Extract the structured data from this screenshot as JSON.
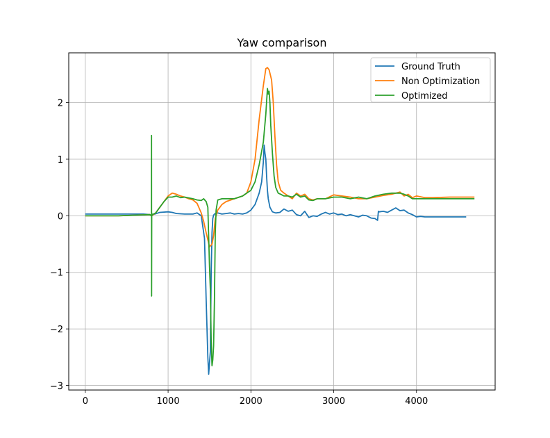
{
  "chart_data": {
    "type": "line",
    "title": "Yaw comparison",
    "xlabel": "",
    "ylabel": "",
    "xlim": [
      -200,
      4950
    ],
    "ylim": [
      -3.08,
      2.88
    ],
    "xticks": [
      0,
      1000,
      2000,
      3000,
      4000
    ],
    "xtick_labels": [
      "0",
      "1000",
      "2000",
      "3000",
      "4000"
    ],
    "yticks": [
      -3,
      -2,
      -1,
      0,
      1,
      2
    ],
    "ytick_labels": [
      "−3",
      "−2",
      "−1",
      "0",
      "1",
      "2"
    ],
    "grid": true,
    "legend_position": "upper right",
    "series": [
      {
        "name": "Ground Truth",
        "color": "#1f77b4",
        "x": [
          0,
          200,
          400,
          600,
          700,
          780,
          800,
          820,
          900,
          1000,
          1050,
          1100,
          1200,
          1300,
          1350,
          1400,
          1440,
          1460,
          1480,
          1490,
          1500,
          1510,
          1520,
          1530,
          1540,
          1550,
          1560,
          1600,
          1650,
          1700,
          1750,
          1800,
          1850,
          1900,
          1950,
          2000,
          2050,
          2100,
          2130,
          2150,
          2160,
          2170,
          2180,
          2190,
          2200,
          2210,
          2230,
          2260,
          2300,
          2350,
          2400,
          2450,
          2500,
          2550,
          2600,
          2650,
          2700,
          2750,
          2800,
          2850,
          2900,
          2950,
          3000,
          3050,
          3100,
          3150,
          3200,
          3250,
          3300,
          3350,
          3400,
          3450,
          3500,
          3530,
          3540,
          3550,
          3600,
          3650,
          3700,
          3750,
          3800,
          3850,
          3900,
          3950,
          4000,
          4050,
          4100,
          4200,
          4300,
          4400,
          4500,
          4600
        ],
        "y": [
          0.03,
          0.03,
          0.03,
          0.03,
          0.03,
          0.02,
          0.0,
          0.02,
          0.06,
          0.07,
          0.06,
          0.04,
          0.03,
          0.03,
          0.05,
          0.0,
          -0.4,
          -1.5,
          -2.5,
          -2.8,
          -2.6,
          -2.4,
          -1.0,
          -0.3,
          -0.05,
          0.01,
          0.03,
          0.05,
          0.03,
          0.04,
          0.05,
          0.03,
          0.04,
          0.03,
          0.05,
          0.1,
          0.2,
          0.4,
          0.6,
          0.95,
          1.25,
          1.1,
          1.0,
          0.7,
          0.45,
          0.3,
          0.15,
          0.07,
          0.05,
          0.06,
          0.12,
          0.08,
          0.1,
          0.02,
          0.0,
          0.08,
          -0.03,
          0.0,
          -0.01,
          0.03,
          0.06,
          0.03,
          0.05,
          0.02,
          0.03,
          0.0,
          0.02,
          0.0,
          -0.02,
          0.01,
          0.0,
          -0.04,
          -0.05,
          -0.08,
          0.08,
          0.07,
          0.08,
          0.06,
          0.1,
          0.14,
          0.09,
          0.1,
          0.05,
          0.02,
          -0.02,
          -0.01,
          -0.02,
          -0.02,
          -0.02,
          -0.02,
          -0.02,
          -0.02
        ]
      },
      {
        "name": "Non Optimization",
        "color": "#ff7f0e",
        "x": [
          0,
          200,
          400,
          600,
          780,
          800,
          850,
          900,
          950,
          1000,
          1050,
          1100,
          1150,
          1200,
          1250,
          1300,
          1350,
          1400,
          1430,
          1460,
          1500,
          1530,
          1550,
          1570,
          1600,
          1650,
          1700,
          1800,
          1900,
          1950,
          2000,
          2050,
          2100,
          2150,
          2180,
          2200,
          2220,
          2250,
          2270,
          2290,
          2310,
          2330,
          2360,
          2400,
          2450,
          2500,
          2550,
          2600,
          2650,
          2700,
          2750,
          2800,
          2900,
          3000,
          3100,
          3200,
          3300,
          3400,
          3500,
          3600,
          3700,
          3800,
          3850,
          3900,
          3950,
          4000,
          4100,
          4200,
          4400,
          4700
        ],
        "y": [
          0.0,
          0.0,
          0.0,
          0.01,
          0.02,
          0.0,
          0.05,
          0.15,
          0.25,
          0.35,
          0.4,
          0.38,
          0.35,
          0.33,
          0.3,
          0.28,
          0.22,
          0.05,
          -0.1,
          -0.3,
          -0.55,
          -0.5,
          -0.35,
          -0.05,
          0.1,
          0.2,
          0.25,
          0.3,
          0.35,
          0.4,
          0.6,
          1.0,
          1.7,
          2.3,
          2.6,
          2.62,
          2.58,
          2.4,
          2.0,
          1.4,
          0.9,
          0.6,
          0.45,
          0.4,
          0.35,
          0.3,
          0.4,
          0.35,
          0.38,
          0.3,
          0.28,
          0.3,
          0.3,
          0.37,
          0.35,
          0.33,
          0.3,
          0.3,
          0.33,
          0.36,
          0.38,
          0.42,
          0.35,
          0.38,
          0.32,
          0.35,
          0.32,
          0.32,
          0.33,
          0.33
        ]
      },
      {
        "name": "Optimized",
        "color": "#2ca02c",
        "x": [
          0,
          200,
          400,
          600,
          780,
          799,
          800,
          801,
          802,
          803,
          810,
          850,
          900,
          950,
          1000,
          1050,
          1100,
          1150,
          1200,
          1300,
          1350,
          1400,
          1430,
          1460,
          1480,
          1500,
          1510,
          1520,
          1530,
          1540,
          1550,
          1560,
          1570,
          1580,
          1600,
          1650,
          1700,
          1800,
          1900,
          1950,
          2000,
          2050,
          2100,
          2150,
          2180,
          2200,
          2210,
          2220,
          2230,
          2240,
          2260,
          2280,
          2300,
          2330,
          2360,
          2400,
          2450,
          2500,
          2550,
          2600,
          2650,
          2700,
          2750,
          2800,
          2900,
          3000,
          3100,
          3200,
          3300,
          3400,
          3500,
          3600,
          3700,
          3800,
          3850,
          3900,
          3950,
          4000,
          4100,
          4200,
          4400,
          4700
        ],
        "y": [
          0.0,
          0.0,
          0.0,
          0.01,
          0.02,
          0.0,
          1.42,
          -1.42,
          0.05,
          0.0,
          0.02,
          0.05,
          0.15,
          0.25,
          0.33,
          0.33,
          0.35,
          0.32,
          0.33,
          0.3,
          0.28,
          0.27,
          0.3,
          0.25,
          0.15,
          -0.9,
          -1.3,
          -2.2,
          -2.65,
          -2.55,
          -2.3,
          -1.5,
          -0.3,
          0.1,
          0.28,
          0.3,
          0.3,
          0.3,
          0.35,
          0.4,
          0.45,
          0.6,
          0.9,
          1.3,
          1.8,
          2.25,
          2.15,
          2.2,
          2.0,
          1.6,
          1.1,
          0.7,
          0.5,
          0.4,
          0.38,
          0.35,
          0.35,
          0.33,
          0.38,
          0.33,
          0.35,
          0.28,
          0.27,
          0.3,
          0.3,
          0.33,
          0.33,
          0.3,
          0.33,
          0.3,
          0.35,
          0.38,
          0.4,
          0.4,
          0.38,
          0.35,
          0.3,
          0.3,
          0.3,
          0.3,
          0.3,
          0.3
        ]
      }
    ]
  }
}
